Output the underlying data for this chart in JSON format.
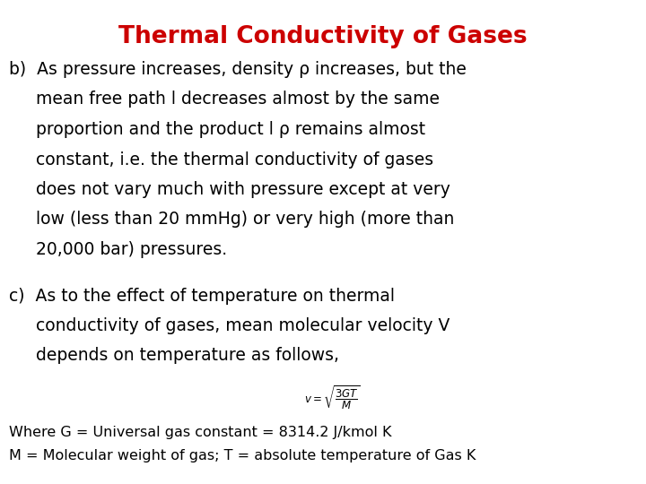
{
  "title": "Thermal Conductivity of Gases",
  "title_color": "#cc0000",
  "title_fontsize": 19,
  "bg_color": "#ffffff",
  "text_color": "#000000",
  "body_fontsize": 13.5,
  "note_fontsize": 11.5,
  "formula_fontsize": 8.5,
  "b_lines": [
    "b)  As pressure increases, density ρ increases, but the",
    "     mean free path l decreases almost by the same",
    "     proportion and the product l ρ remains almost",
    "     constant, i.e. the thermal conductivity of gases",
    "     does not vary much with pressure except at very",
    "     low (less than 20 mmHg) or very high (more than",
    "     20,000 bar) pressures."
  ],
  "c_lines": [
    "c)  As to the effect of temperature on thermal",
    "     conductivity of gases, mean molecular velocity V",
    "     depends on temperature as follows,"
  ],
  "formula_note1": "Where G = Universal gas constant = 8314.2 J/kmol K",
  "formula_note2": "M = Molecular weight of gas; T = absolute temperature of Gas K"
}
